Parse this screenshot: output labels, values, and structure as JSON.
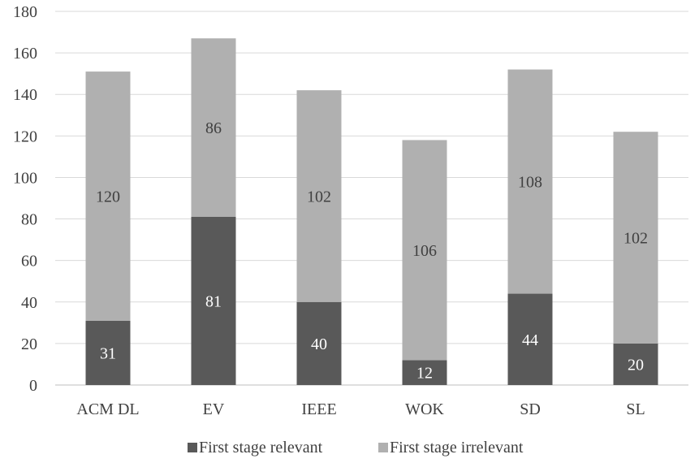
{
  "chart_data": {
    "type": "bar",
    "stacked": true,
    "categories": [
      "ACM DL",
      "EV",
      "IEEE",
      "WOK",
      "SD",
      "SL"
    ],
    "series": [
      {
        "name": "First stage relevant",
        "values": [
          31,
          81,
          40,
          12,
          44,
          20
        ],
        "color": "#595959"
      },
      {
        "name": "First stage irrelevant",
        "values": [
          120,
          86,
          102,
          106,
          108,
          102
        ],
        "color": "#b0b0b0"
      }
    ],
    "yticks": [
      0,
      20,
      40,
      60,
      80,
      100,
      120,
      140,
      160,
      180
    ],
    "ylim": [
      0,
      180
    ],
    "grid": true,
    "legend_position": "bottom"
  }
}
